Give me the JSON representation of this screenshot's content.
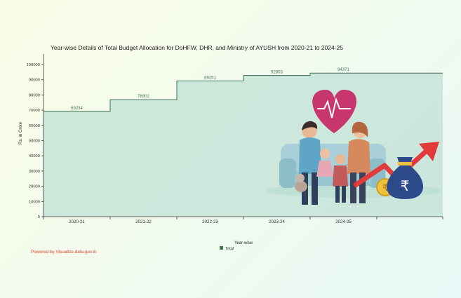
{
  "chart_data": {
    "type": "area",
    "title": "Year-wise Details of Total Budget Allocation for DoHFW, DHR, and Ministry of AYUSH from 2020-21 to 2024-25",
    "xlabel": "Year-wise",
    "ylabel": "Rs. in Crore",
    "categories": [
      "2020-21",
      "2021-22",
      "2022-23",
      "2023-24",
      "2024-25"
    ],
    "series": [
      {
        "name": "Total",
        "values": [
          69234,
          76902,
          89251,
          92803,
          94371
        ]
      }
    ],
    "ylim": [
      0,
      100000
    ],
    "yticks": [
      0,
      10000,
      20000,
      30000,
      40000,
      50000,
      60000,
      70000,
      80000,
      90000,
      100000
    ],
    "legend_position": "bottom",
    "colors": {
      "area": "#c6e3d7",
      "line": "#3f6f55",
      "legend": "#3d7a4a"
    }
  },
  "footer": {
    "credit": "Powered by Visualize.data.gov.in"
  }
}
